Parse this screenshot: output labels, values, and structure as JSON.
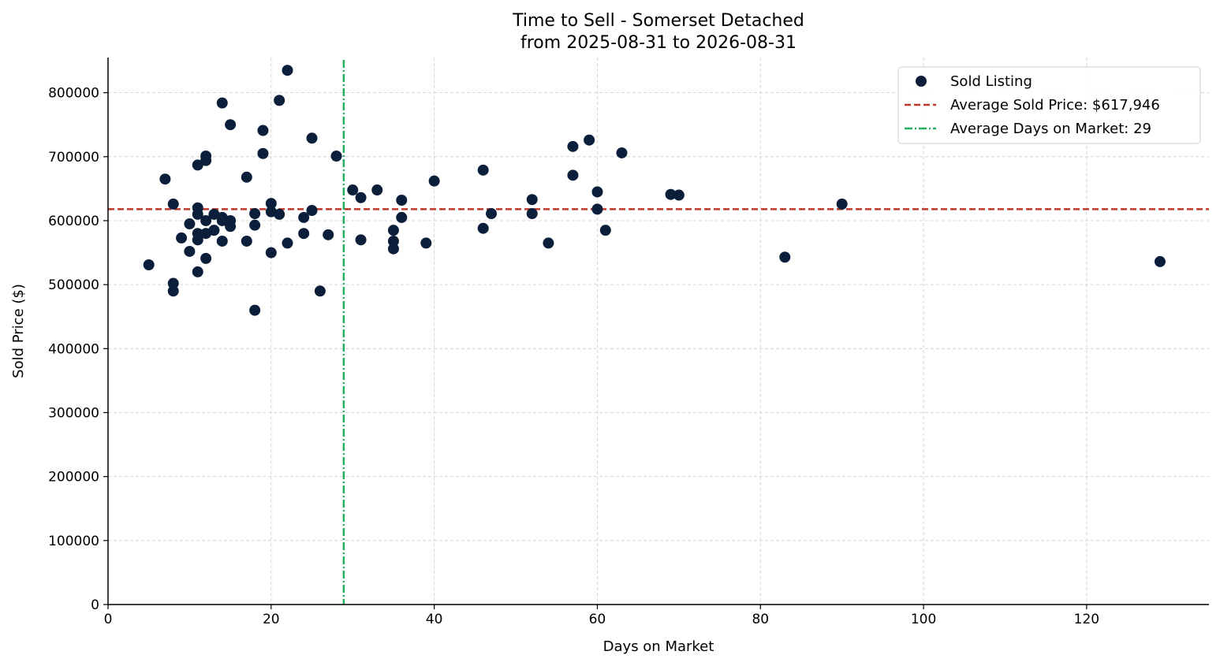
{
  "chart_data": {
    "type": "scatter",
    "title": "Time to Sell - Somerset Detached",
    "subtitle": "from 2025-08-31 to 2026-08-31",
    "xlabel": "Days on Market",
    "ylabel": "Sold Price ($)",
    "xlim": [
      0,
      135
    ],
    "ylim": [
      0,
      855000
    ],
    "xticks": [
      0,
      20,
      40,
      60,
      80,
      100,
      120
    ],
    "yticks": [
      0,
      100000,
      200000,
      300000,
      400000,
      500000,
      600000,
      700000,
      800000
    ],
    "grid": true,
    "legend_position": "top-right",
    "series": [
      {
        "name": "Sold Listing",
        "color": "#0b1f3a",
        "points": [
          [
            5,
            531000
          ],
          [
            7,
            665000
          ],
          [
            8,
            626000
          ],
          [
            8,
            502000
          ],
          [
            8,
            490000
          ],
          [
            9,
            573000
          ],
          [
            10,
            595000
          ],
          [
            10,
            552000
          ],
          [
            11,
            687000
          ],
          [
            11,
            620000
          ],
          [
            11,
            610000
          ],
          [
            11,
            580000
          ],
          [
            11,
            570000
          ],
          [
            11,
            520000
          ],
          [
            12,
            701000
          ],
          [
            12,
            694000
          ],
          [
            12,
            600000
          ],
          [
            12,
            580000
          ],
          [
            12,
            541000
          ],
          [
            13,
            610000
          ],
          [
            13,
            585000
          ],
          [
            14,
            784000
          ],
          [
            14,
            605000
          ],
          [
            14,
            600000
          ],
          [
            14,
            568000
          ],
          [
            15,
            750000
          ],
          [
            15,
            600000
          ],
          [
            15,
            591000
          ],
          [
            17,
            668000
          ],
          [
            17,
            568000
          ],
          [
            18,
            611000
          ],
          [
            18,
            593000
          ],
          [
            18,
            460000
          ],
          [
            19,
            741000
          ],
          [
            19,
            705000
          ],
          [
            20,
            627000
          ],
          [
            20,
            614000
          ],
          [
            20,
            550000
          ],
          [
            21,
            788000
          ],
          [
            21,
            610000
          ],
          [
            22,
            835000
          ],
          [
            22,
            565000
          ],
          [
            24,
            605000
          ],
          [
            24,
            580000
          ],
          [
            25,
            729000
          ],
          [
            25,
            616000
          ],
          [
            26,
            490000
          ],
          [
            27,
            578000
          ],
          [
            28,
            701000
          ],
          [
            30,
            648000
          ],
          [
            31,
            636000
          ],
          [
            31,
            570000
          ],
          [
            33,
            648000
          ],
          [
            35,
            585000
          ],
          [
            35,
            568000
          ],
          [
            35,
            556000
          ],
          [
            36,
            632000
          ],
          [
            36,
            605000
          ],
          [
            39,
            565000
          ],
          [
            40,
            662000
          ],
          [
            46,
            679000
          ],
          [
            46,
            588000
          ],
          [
            47,
            611000
          ],
          [
            52,
            633000
          ],
          [
            52,
            611000
          ],
          [
            54,
            565000
          ],
          [
            57,
            716000
          ],
          [
            57,
            671000
          ],
          [
            59,
            726000
          ],
          [
            60,
            645000
          ],
          [
            60,
            618000
          ],
          [
            61,
            585000
          ],
          [
            63,
            706000
          ],
          [
            69,
            641000
          ],
          [
            70,
            640000
          ],
          [
            83,
            543000
          ],
          [
            90,
            626000
          ],
          [
            129,
            536000
          ]
        ]
      }
    ],
    "average_price": {
      "label": "Average Sold Price: $617,946",
      "value": 617946,
      "color": "#c0392b",
      "style": "dashed"
    },
    "average_days": {
      "label": "Average Days on Market: 29",
      "value": 28.9,
      "color": "#27ae60",
      "style": "dash-dot"
    }
  }
}
